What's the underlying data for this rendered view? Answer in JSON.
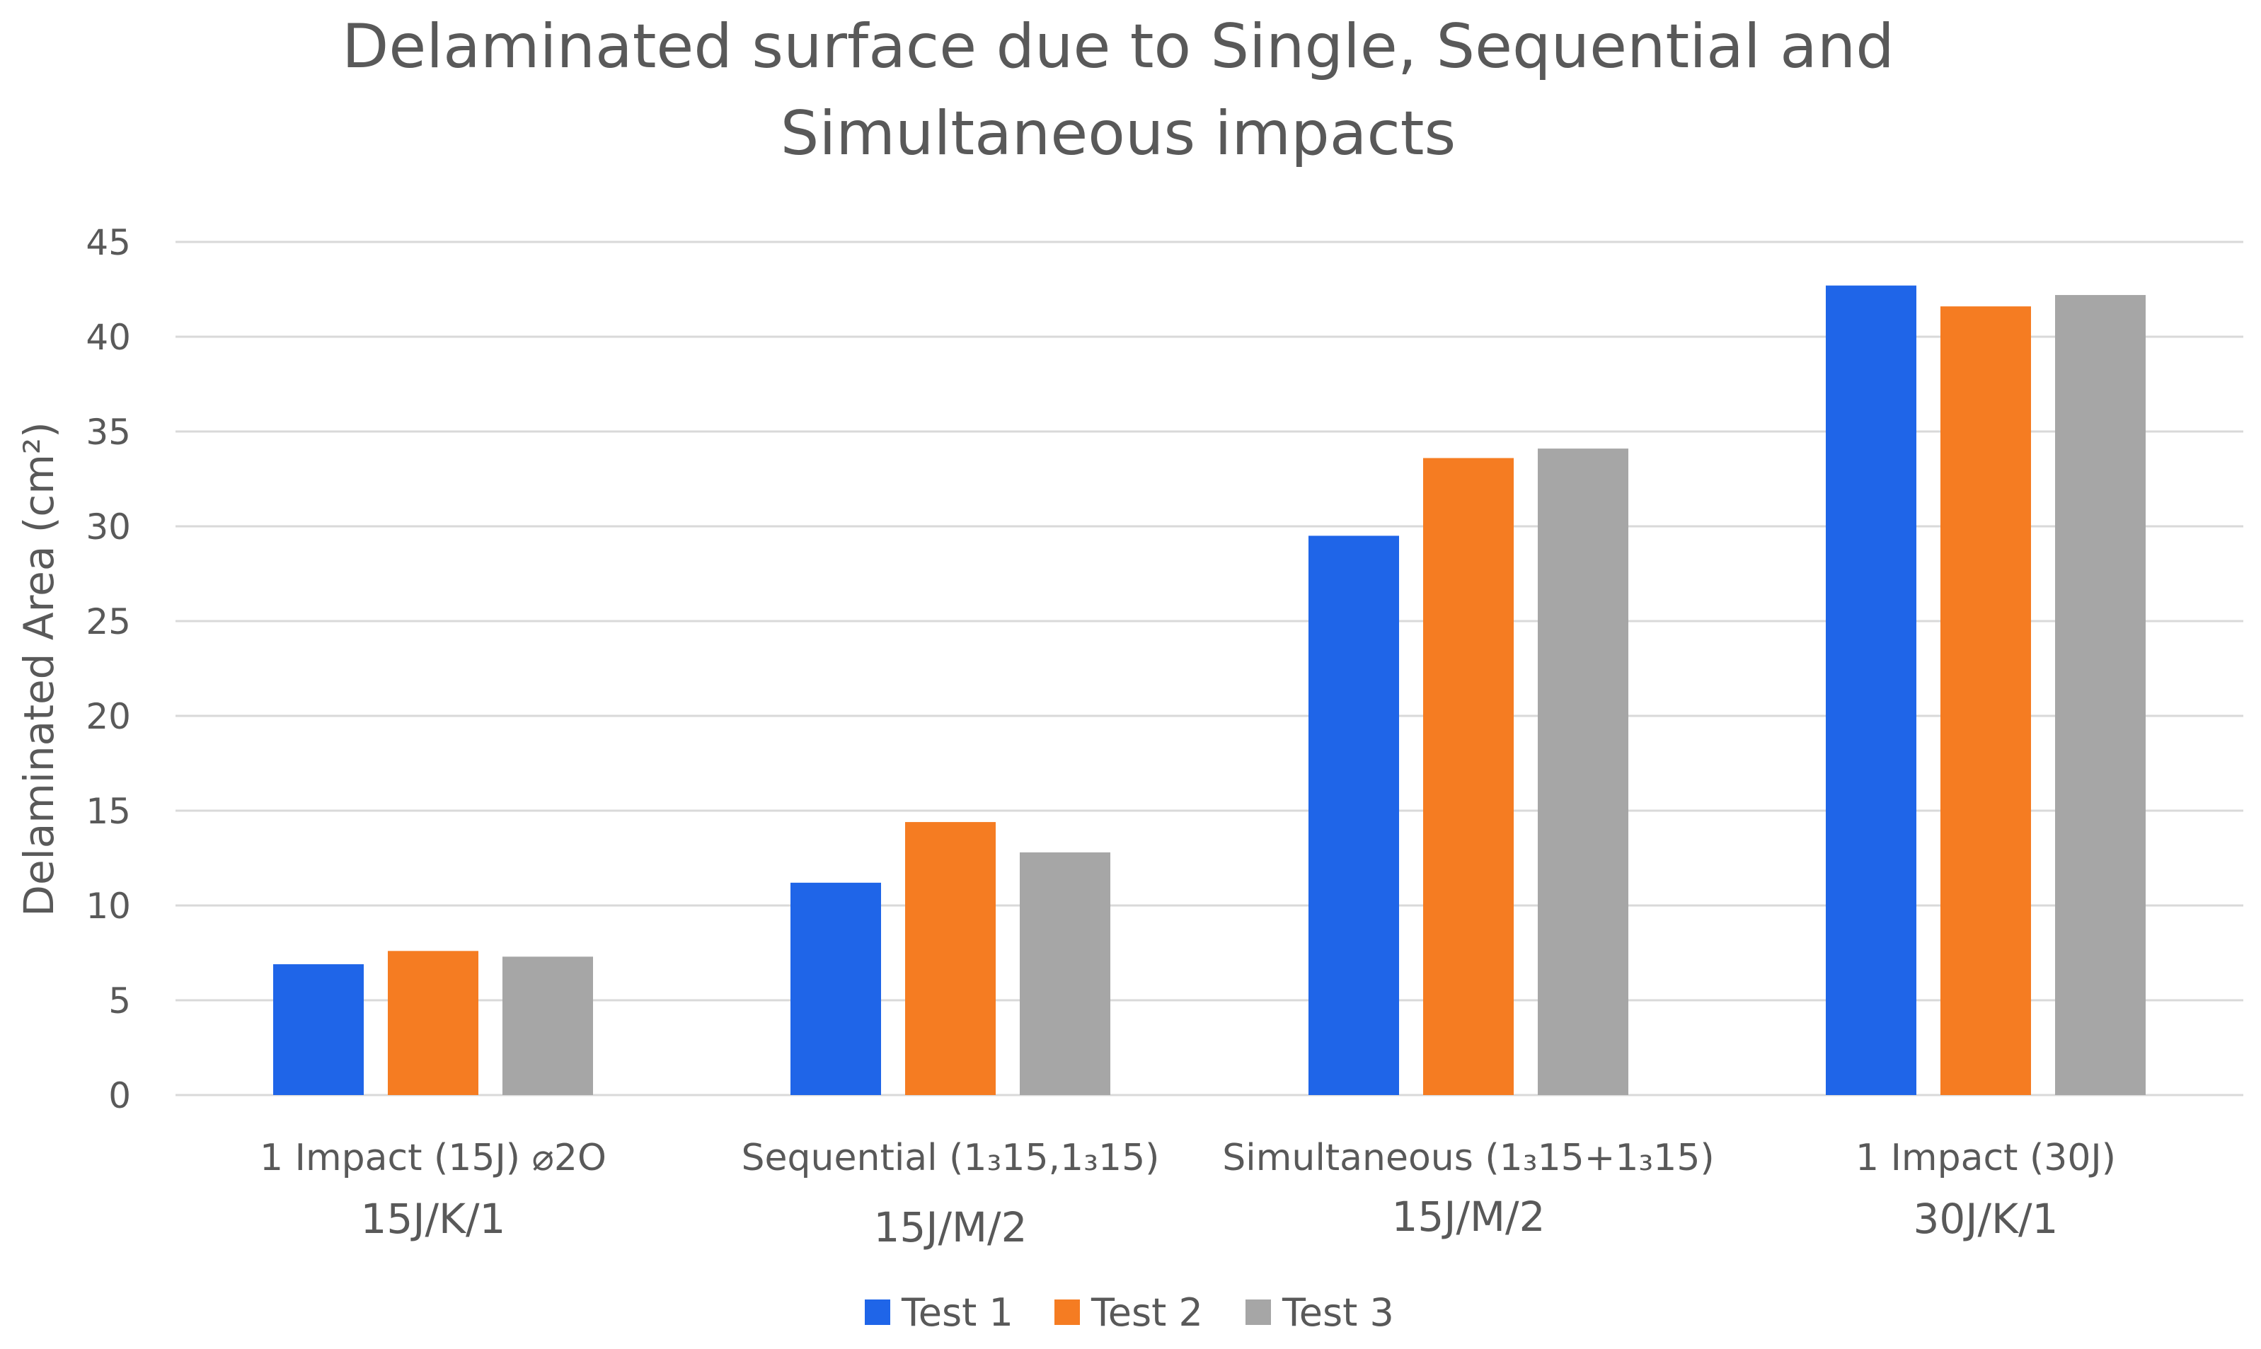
{
  "chart_data": {
    "type": "bar",
    "title_lines": [
      "Delaminated surface due to Single, Sequential and",
      "Simultaneous impacts"
    ],
    "ylabel": "Delaminated Area (cm²)",
    "xlabel": "",
    "ylim": [
      0,
      45
    ],
    "yticks": [
      "0",
      "5",
      "10",
      "15",
      "20",
      "25",
      "30",
      "35",
      "40",
      "45"
    ],
    "grid": true,
    "legend_position": "bottom",
    "categories": [
      {
        "line1": "1 Impact (15J) ⌀2O",
        "line2": "15J/K/1"
      },
      {
        "line1": "Sequential (1₃15,1₃15)",
        "line2": "15J/M/2"
      },
      {
        "line1": "Simultaneous (1₃15+1₃15)",
        "line2": "15J/M/2"
      },
      {
        "line1": "1 Impact (30J)",
        "line2": "30J/K/1"
      }
    ],
    "series": [
      {
        "name": "Test 1",
        "color": "#1f65e8",
        "values": [
          6.9,
          11.2,
          29.5,
          42.7
        ]
      },
      {
        "name": "Test 2",
        "color": "#f57c22",
        "values": [
          7.6,
          14.4,
          33.6,
          41.6
        ]
      },
      {
        "name": "Test 3",
        "color": "#a6a6a6",
        "values": [
          7.3,
          12.8,
          34.1,
          42.2
        ]
      }
    ]
  }
}
